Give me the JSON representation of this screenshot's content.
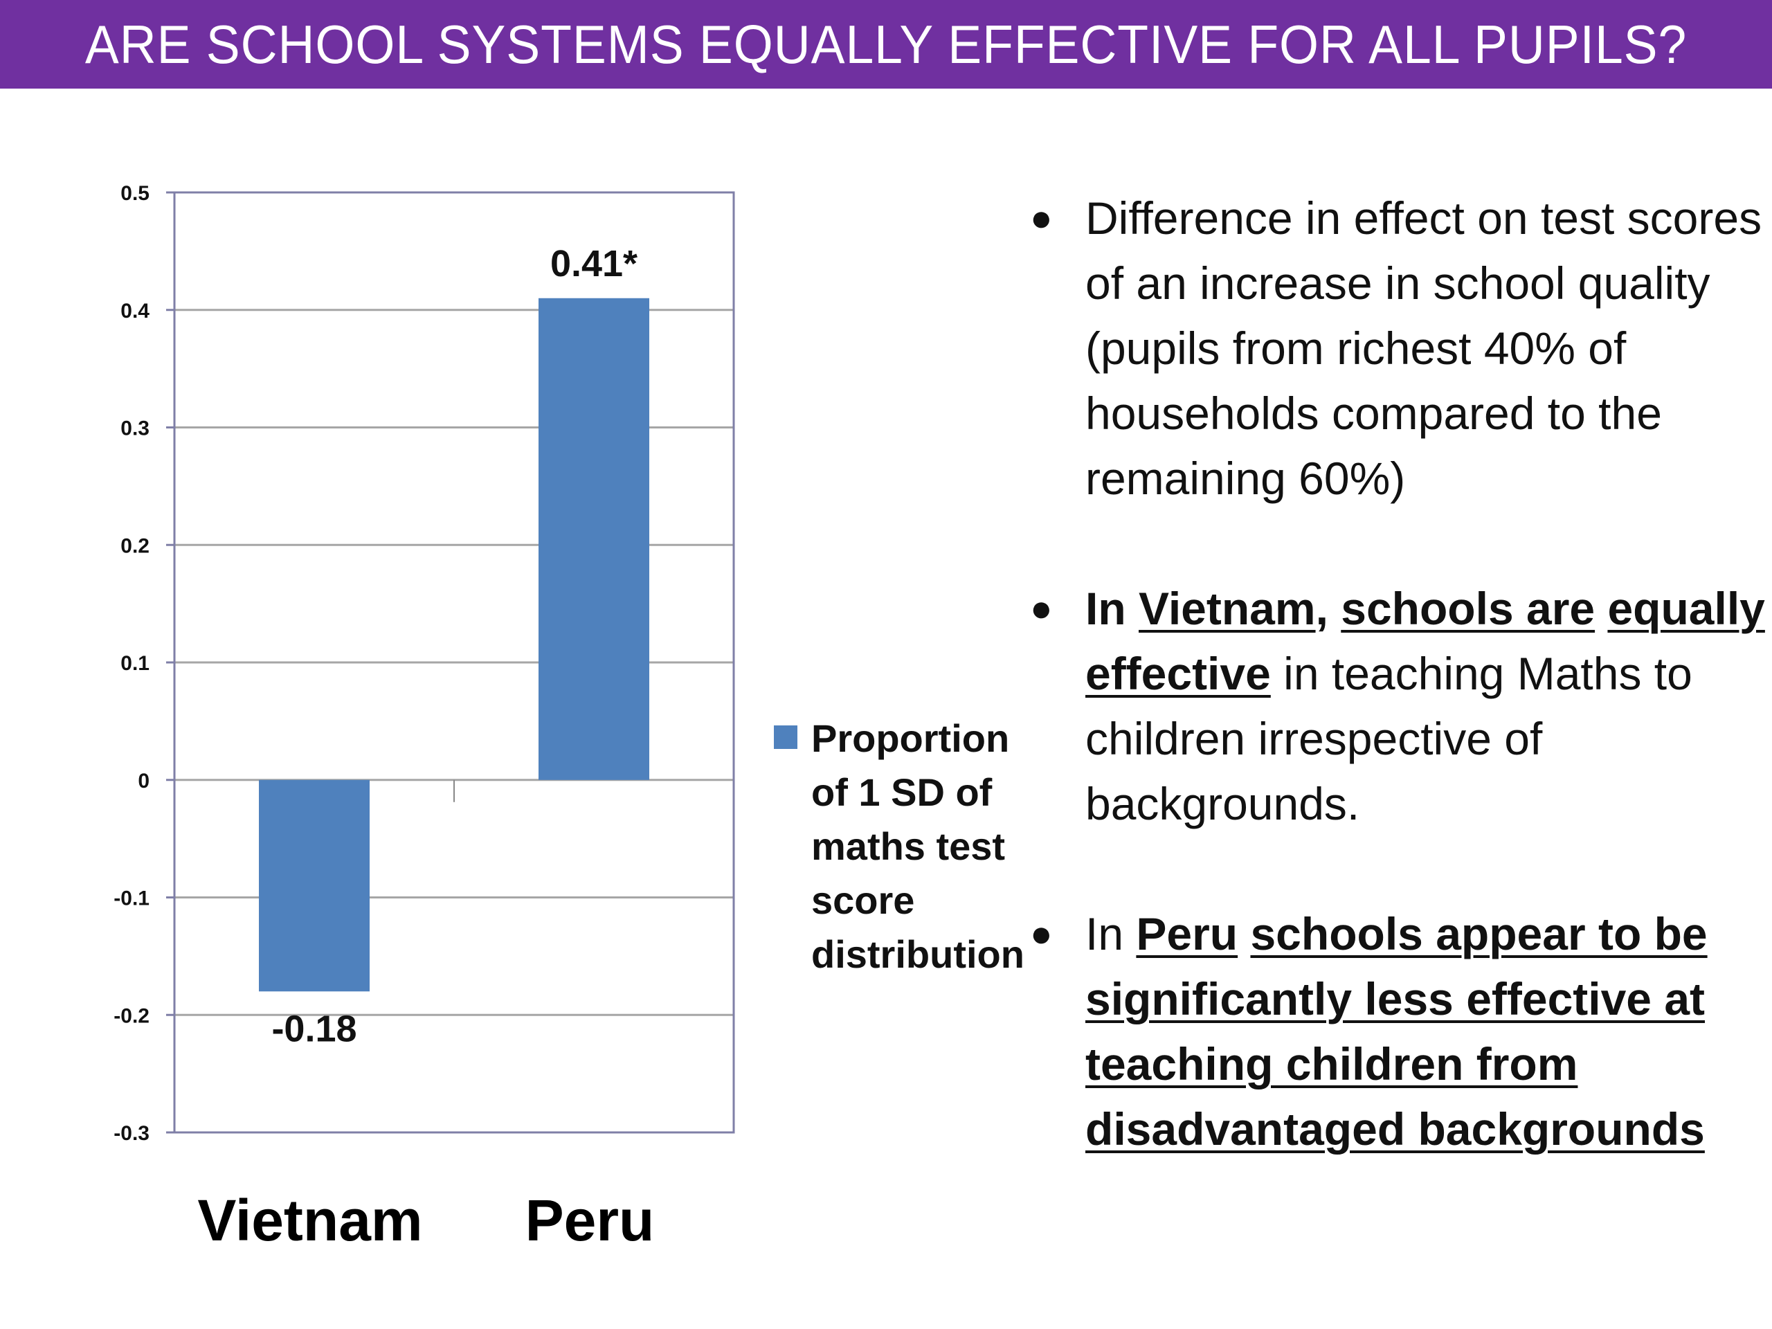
{
  "title": "ARE SCHOOL SYSTEMS EQUALLY EFFECTIVE FOR ALL PUPILS?",
  "colors": {
    "title_bar": "#7030a0",
    "bar": "#4f81bd",
    "grid": "#a6a6a6",
    "axis": "#7f7fa7"
  },
  "chart_data": {
    "type": "bar",
    "categories": [
      "Vietnam",
      "Peru"
    ],
    "series": [
      {
        "name": "Proportion of 1 SD of maths test score distribution",
        "values": [
          -0.18,
          0.41
        ]
      }
    ],
    "data_labels": [
      "-0.18",
      "0.41*"
    ],
    "ylim": [
      -0.3,
      0.5
    ],
    "yticks": [
      "0.5",
      "0.4",
      "0.3",
      "0.2",
      "0.1",
      "0",
      "-0.1",
      "-0.2",
      "-0.3"
    ],
    "grid": true,
    "legend_position": "right",
    "xlabel": "",
    "ylabel": ""
  },
  "legend": {
    "line1": "Proportion",
    "line2": "of 1 SD of",
    "line3": "maths test",
    "line4": "score",
    "line5": "distribution"
  },
  "bullets": {
    "b1": {
      "text": "Difference in effect on test scores of an increase in school quality (pupils from richest 40% of households compared to the remaining 60%)"
    },
    "b2": {
      "in": "In",
      "vietnam": "Vietnam",
      "comma": ",",
      "schools_are": "schools are",
      "equally_effective": "equally effective",
      "rest": "in teaching Maths to children irrespective of backgrounds."
    },
    "b3": {
      "in": "In",
      "peru": "Peru",
      "rest": "schools appear to be significantly less effective at teaching children from disadvantaged backgrounds"
    }
  }
}
